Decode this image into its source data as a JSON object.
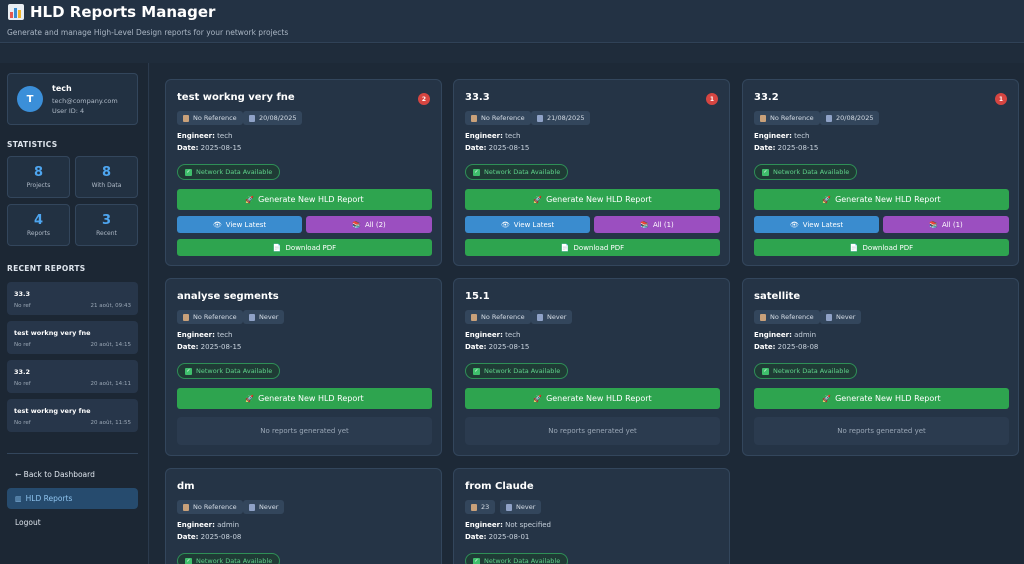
{
  "header": {
    "title": "HLD Reports Manager",
    "subtitle": "Generate and manage High-Level Design reports for your network projects",
    "icon": "bar-chart-icon"
  },
  "user": {
    "initial": "T",
    "name": "tech",
    "email": "tech@company.com",
    "user_id": "User ID: 4"
  },
  "statistics": {
    "heading": "STATISTICS",
    "items": [
      {
        "value": "8",
        "label": "Projects"
      },
      {
        "value": "8",
        "label": "With Data"
      },
      {
        "value": "4",
        "label": "Reports"
      },
      {
        "value": "3",
        "label": "Recent"
      }
    ]
  },
  "recent": {
    "heading": "RECENT REPORTS",
    "items": [
      {
        "title": "33.3",
        "ref": "No ref",
        "date": "21 août, 09:43"
      },
      {
        "title": "test workng very fne",
        "ref": "No ref",
        "date": "20 août, 14:15"
      },
      {
        "title": "33.2",
        "ref": "No ref",
        "date": "20 août, 14:11"
      },
      {
        "title": "test workng very fne",
        "ref": "No ref",
        "date": "20 août, 11:55"
      }
    ]
  },
  "nav": {
    "back": "← Back to Dashboard",
    "hld": "HLD Reports",
    "logout": "Logout"
  },
  "labels": {
    "engineer": "Engineer:",
    "date": "Date:",
    "network": "Network Data Available",
    "generate": "Generate New HLD Report",
    "view_latest": "View Latest",
    "download": "Download PDF",
    "no_reports": "No reports generated yet"
  },
  "projects": [
    {
      "name": "test workng very fne",
      "badge": "2",
      "reference": "No Reference",
      "last": "20/08/2025",
      "engineer": "tech",
      "date": "2025-08-15",
      "all": "All (2)"
    },
    {
      "name": "33.3",
      "badge": "1",
      "reference": "No Reference",
      "last": "21/08/2025",
      "engineer": "tech",
      "date": "2025-08-15",
      "all": "All (1)"
    },
    {
      "name": "33.2",
      "badge": "1",
      "reference": "No Reference",
      "last": "20/08/2025",
      "engineer": "tech",
      "date": "2025-08-15",
      "all": "All (1)"
    },
    {
      "name": "analyse segments",
      "reference": "No Reference",
      "last": "Never",
      "engineer": "tech",
      "date": "2025-08-15"
    },
    {
      "name": "15.1",
      "reference": "No Reference",
      "last": "Never",
      "engineer": "tech",
      "date": "2025-08-15"
    },
    {
      "name": "satellite",
      "reference": "No Reference",
      "last": "Never",
      "engineer": "admin",
      "date": "2025-08-08"
    },
    {
      "name": "dm",
      "reference": "No Reference",
      "last": "Never",
      "engineer": "admin",
      "date": "2025-08-08"
    },
    {
      "name": "from Claude",
      "reference": "23",
      "last": "Never",
      "engineer": "Not specified",
      "date": "2025-08-01"
    }
  ],
  "colors": {
    "accent_blue": "#4ea5ef",
    "generate_green": "#2ea44f",
    "view_blue": "#3a8ccf",
    "all_purple": "#9b4fc0",
    "badge_red": "#d64541"
  }
}
